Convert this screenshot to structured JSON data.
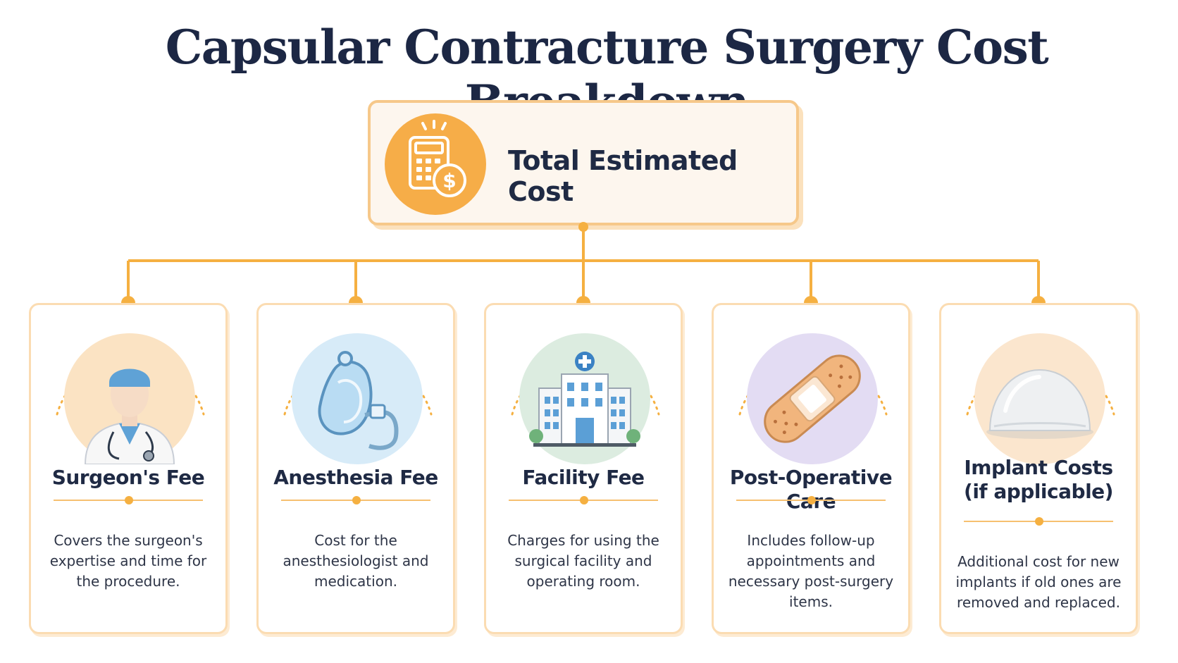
{
  "title": "Capsular Contracture Surgery Cost Breakdown",
  "total": {
    "label": "Total Estimated Cost",
    "icon": "calculator-dollar-icon"
  },
  "colors": {
    "accent": "#f5b041",
    "title": "#1c2744",
    "card_border": "#fbdcb2"
  },
  "items": [
    {
      "title": "Surgeon's Fee",
      "description": "Covers the surgeon's expertise and time for the procedure.",
      "icon": "surgeon-icon",
      "disc_color": "#fbe3c3"
    },
    {
      "title": "Anesthesia Fee",
      "description": "Cost for the anesthesiologist and medication.",
      "icon": "anesthesia-mask-icon",
      "disc_color": "#d7ebf8"
    },
    {
      "title": "Facility Fee",
      "description": "Charges for using the surgical facility and operating room.",
      "icon": "hospital-building-icon",
      "disc_color": "#dcece0"
    },
    {
      "title": "Post-Operative Care",
      "description": "Includes follow-up appointments and necessary post-surgery items.",
      "icon": "bandage-icon",
      "disc_color": "#e3dcf3"
    },
    {
      "title": "Implant Costs\n(if applicable)",
      "description": "Additional cost for new implants if old ones are removed and replaced.",
      "icon": "implant-icon",
      "disc_color": "#fbe6ce"
    }
  ]
}
